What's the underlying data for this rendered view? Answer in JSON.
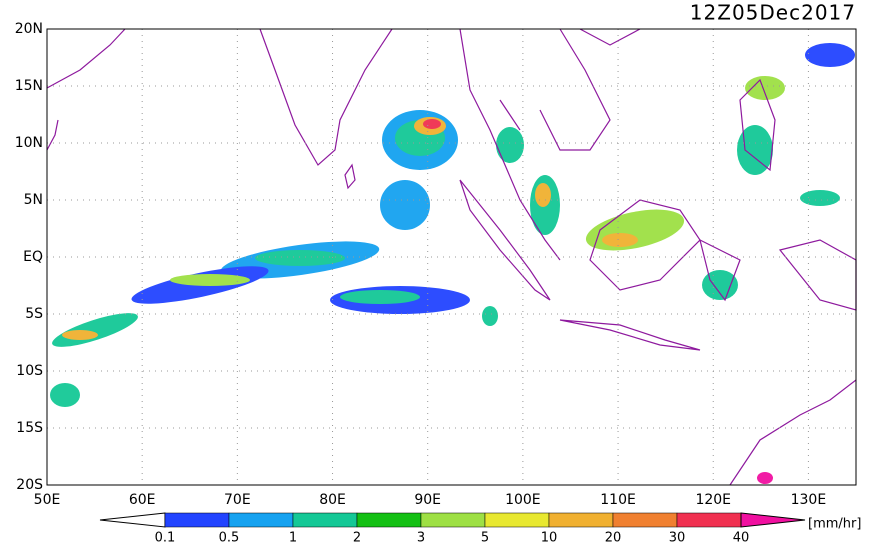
{
  "title": "12Z05Dec2017",
  "lon_lim": [
    50,
    135
  ],
  "lat_lim": [
    -20,
    20
  ],
  "lon_ticks": [
    {
      "value": 50,
      "label": "50E"
    },
    {
      "value": 60,
      "label": "60E"
    },
    {
      "value": 70,
      "label": "70E"
    },
    {
      "value": 80,
      "label": "80E"
    },
    {
      "value": 90,
      "label": "90E"
    },
    {
      "value": 100,
      "label": "100E"
    },
    {
      "value": 110,
      "label": "110E"
    },
    {
      "value": 120,
      "label": "120E"
    },
    {
      "value": 130,
      "label": "130E"
    }
  ],
  "lat_ticks": [
    {
      "value": 20,
      "label": "20N"
    },
    {
      "value": 15,
      "label": "15N"
    },
    {
      "value": 10,
      "label": "10N"
    },
    {
      "value": 5,
      "label": "5N"
    },
    {
      "value": 0,
      "label": "EQ"
    },
    {
      "value": -5,
      "label": "5S"
    },
    {
      "value": -10,
      "label": "10S"
    },
    {
      "value": -15,
      "label": "15S"
    },
    {
      "value": -20,
      "label": "20S"
    }
  ],
  "colorbar": {
    "levels": [
      0.1,
      0.5,
      1,
      2,
      3,
      5,
      10,
      20,
      30,
      40
    ],
    "colors": [
      "#ffffff",
      "#2244ff",
      "#16a2f0",
      "#14c896",
      "#14c014",
      "#9ee044",
      "#e8e830",
      "#f0b030",
      "#f08030",
      "#f03050",
      "#f010a0"
    ],
    "unit": "[mm/hr]"
  }
}
